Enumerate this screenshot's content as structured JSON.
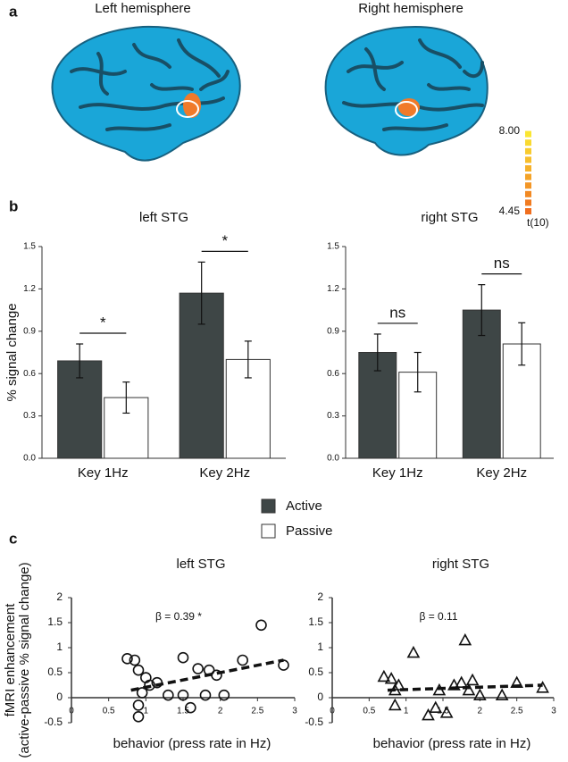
{
  "figure": {
    "panel_labels": [
      "a",
      "b",
      "c"
    ],
    "brain_titles": [
      "Left hemisphere",
      "Right hemisphere"
    ],
    "colorbar": {
      "lim": [
        4.45,
        8
      ],
      "ticks": [
        {
          "value": 8,
          "label": "8.00"
        },
        {
          "value": 4.45,
          "label": "4.45"
        }
      ],
      "label": "t(10)"
    }
  },
  "chart_data": [
    {
      "type": "bar",
      "title": "left STG",
      "ylabel": "% signal change",
      "categories": [
        "Key 1Hz",
        "Key 2Hz"
      ],
      "series": [
        {
          "name": "Active",
          "color": "#3e4646",
          "values": [
            0.69,
            1.17
          ],
          "errors": [
            0.12,
            0.22
          ]
        },
        {
          "name": "Passive",
          "color": "#ffffff",
          "values": [
            0.43,
            0.7
          ],
          "errors": [
            0.11,
            0.13
          ]
        }
      ],
      "annotations": [
        "*",
        "*"
      ],
      "ylim": [
        0,
        1.5
      ],
      "yticks": [
        {
          "value": 0,
          "label": "0.0"
        },
        {
          "value": 0.3,
          "label": "0.3"
        },
        {
          "value": 0.6,
          "label": "0.6"
        },
        {
          "value": 0.9,
          "label": "0.9"
        },
        {
          "value": 1.2,
          "label": "1.2"
        },
        {
          "value": 1.5,
          "label": "1.5"
        }
      ]
    },
    {
      "type": "bar",
      "title": "right STG",
      "categories": [
        "Key 1Hz",
        "Key 2Hz"
      ],
      "series": [
        {
          "color": "#3e4646",
          "values": [
            0.75,
            1.05
          ],
          "errors": [
            0.13,
            0.18
          ]
        },
        {
          "color": "#ffffff",
          "values": [
            0.61,
            0.81
          ],
          "errors": [
            0.14,
            0.15
          ]
        }
      ],
      "annotations": [
        "ns",
        "ns"
      ],
      "ylim": [
        0,
        1.5
      ],
      "yticks": [
        {
          "value": 0,
          "label": "0.0"
        },
        {
          "value": 0.3,
          "label": "0.3"
        },
        {
          "value": 0.6,
          "label": "0.6"
        },
        {
          "value": 0.9,
          "label": "0.9"
        },
        {
          "value": 1.2,
          "label": "1.2"
        },
        {
          "value": 1.5,
          "label": "1.5"
        }
      ]
    },
    {
      "type": "scatter",
      "title": "left STG",
      "marker": "circle",
      "ylabel": [
        "fMRI enhancement",
        "(active-passive % signal change)"
      ],
      "xlabel": "behavior (press rate in Hz)",
      "annotation": "β = 0.39 *",
      "x": [
        0.75,
        0.85,
        1.0,
        0.9,
        1.05,
        0.95,
        0.9,
        0.9,
        1.15,
        1.3,
        1.5,
        1.5,
        1.6,
        1.7,
        1.85,
        1.8,
        1.95,
        2.05,
        2.3,
        2.55,
        2.85
      ],
      "y": [
        0.78,
        0.75,
        0.4,
        0.55,
        0.25,
        0.1,
        -0.15,
        -0.38,
        0.3,
        0.05,
        0.8,
        0.05,
        -0.2,
        0.58,
        0.55,
        0.05,
        0.45,
        0.05,
        0.75,
        1.45,
        0.65
      ],
      "fit_line": {
        "x": [
          0.8,
          2.85
        ],
        "y": [
          0.15,
          0.75
        ]
      },
      "xlim": [
        0,
        3
      ],
      "ylim": [
        -0.5,
        2
      ],
      "xticks": [
        0,
        0.5,
        1,
        1.5,
        2,
        2.5,
        3
      ],
      "yticks": [
        -0.5,
        0,
        0.5,
        1,
        1.5,
        2
      ]
    },
    {
      "type": "scatter",
      "title": "right STG",
      "marker": "triangle",
      "xlabel": "behavior (press rate in Hz)",
      "annotation": "β = 0.11",
      "x": [
        0.7,
        0.8,
        0.85,
        0.9,
        0.85,
        1.1,
        1.3,
        1.4,
        1.45,
        1.55,
        1.65,
        1.75,
        1.8,
        1.85,
        1.9,
        2.0,
        2.3,
        2.5,
        2.85
      ],
      "y": [
        0.42,
        0.38,
        0.15,
        0.25,
        -0.15,
        0.9,
        -0.35,
        -0.2,
        0.15,
        -0.3,
        0.25,
        0.3,
        1.15,
        0.15,
        0.35,
        0.05,
        0.05,
        0.3,
        0.2
      ],
      "fit_line": {
        "x": [
          0.75,
          2.85
        ],
        "y": [
          0.15,
          0.25
        ]
      },
      "xlim": [
        0,
        3
      ],
      "ylim": [
        -0.5,
        2
      ],
      "xticks": [
        0,
        0.5,
        1,
        1.5,
        2,
        2.5,
        3
      ],
      "yticks": [
        -0.5,
        0,
        0.5,
        1,
        1.5,
        2
      ]
    }
  ]
}
